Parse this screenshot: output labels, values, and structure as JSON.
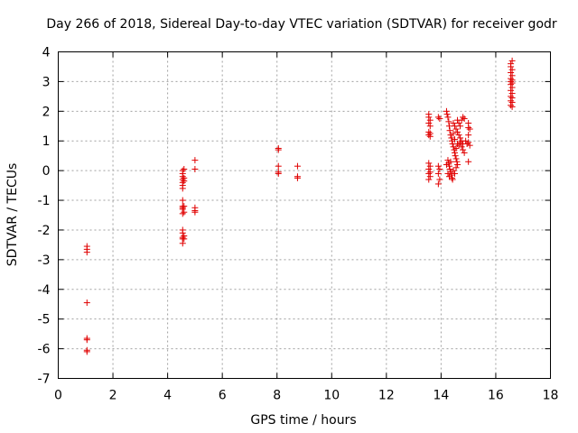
{
  "chart_data": {
    "type": "scatter",
    "title": "Day 266 of 2018, Sidereal Day-to-day VTEC variation (SDTVAR) for receiver godr",
    "xlabel": "GPS time / hours",
    "ylabel": "SDTVAR / TECUs",
    "xlim": [
      0,
      18
    ],
    "ylim": [
      -7,
      4
    ],
    "xticks": [
      "0",
      "2",
      "4",
      "6",
      "8",
      "10",
      "12",
      "14",
      "16",
      "18"
    ],
    "yticks": [
      "-7",
      "-6",
      "-5",
      "-4",
      "-3",
      "-2",
      "-1",
      "0",
      "1",
      "2",
      "3",
      "4"
    ],
    "grid": true,
    "marker": "+",
    "color": "#e00000",
    "series": [
      {
        "name": "SDTVAR",
        "points": [
          [
            1.05,
            -2.55
          ],
          [
            1.05,
            -2.65
          ],
          [
            1.05,
            -2.75
          ],
          [
            1.05,
            -4.45
          ],
          [
            1.05,
            -5.65
          ],
          [
            1.05,
            -5.7
          ],
          [
            1.05,
            -6.05
          ],
          [
            1.05,
            -6.1
          ],
          [
            4.55,
            0.0
          ],
          [
            4.55,
            -0.1
          ],
          [
            4.55,
            -0.2
          ],
          [
            4.55,
            -0.3
          ],
          [
            4.55,
            -0.4
          ],
          [
            4.55,
            -0.5
          ],
          [
            4.55,
            -0.6
          ],
          [
            4.6,
            0.05
          ],
          [
            4.6,
            -0.25
          ],
          [
            4.6,
            -0.35
          ],
          [
            4.55,
            -1.0
          ],
          [
            4.55,
            -1.2
          ],
          [
            4.55,
            -1.25
          ],
          [
            4.55,
            -1.3
          ],
          [
            4.55,
            -1.45
          ],
          [
            4.6,
            -1.2
          ],
          [
            4.6,
            -1.4
          ],
          [
            4.55,
            -2.0
          ],
          [
            4.55,
            -2.1
          ],
          [
            4.55,
            -2.25
          ],
          [
            4.55,
            -2.3
          ],
          [
            4.55,
            -2.45
          ],
          [
            4.6,
            -2.2
          ],
          [
            4.6,
            -2.3
          ],
          [
            5.0,
            0.35
          ],
          [
            5.0,
            0.05
          ],
          [
            5.0,
            -1.25
          ],
          [
            5.0,
            -1.35
          ],
          [
            5.0,
            -1.4
          ],
          [
            8.05,
            0.75
          ],
          [
            8.05,
            0.7
          ],
          [
            8.05,
            0.15
          ],
          [
            8.05,
            -0.05
          ],
          [
            8.05,
            -0.1
          ],
          [
            8.75,
            0.15
          ],
          [
            8.75,
            -0.2
          ],
          [
            8.75,
            -0.25
          ],
          [
            13.55,
            1.9
          ],
          [
            13.55,
            1.8
          ],
          [
            13.6,
            1.7
          ],
          [
            13.55,
            1.6
          ],
          [
            13.6,
            1.5
          ],
          [
            13.55,
            1.3
          ],
          [
            13.6,
            1.25
          ],
          [
            13.55,
            1.2
          ],
          [
            13.6,
            1.15
          ],
          [
            13.55,
            0.25
          ],
          [
            13.6,
            0.15
          ],
          [
            13.55,
            0.05
          ],
          [
            13.6,
            -0.05
          ],
          [
            13.55,
            -0.1
          ],
          [
            13.6,
            -0.2
          ],
          [
            13.55,
            -0.3
          ],
          [
            13.9,
            1.8
          ],
          [
            13.95,
            1.75
          ],
          [
            13.9,
            0.15
          ],
          [
            13.95,
            0.05
          ],
          [
            13.9,
            -0.1
          ],
          [
            13.95,
            -0.3
          ],
          [
            13.9,
            -0.45
          ],
          [
            14.2,
            2.0
          ],
          [
            14.22,
            1.9
          ],
          [
            14.25,
            1.8
          ],
          [
            14.28,
            1.65
          ],
          [
            14.3,
            1.5
          ],
          [
            14.32,
            1.35
          ],
          [
            14.35,
            1.2
          ],
          [
            14.38,
            1.1
          ],
          [
            14.4,
            1.0
          ],
          [
            14.42,
            0.9
          ],
          [
            14.45,
            0.8
          ],
          [
            14.48,
            0.7
          ],
          [
            14.5,
            0.6
          ],
          [
            14.52,
            0.5
          ],
          [
            14.55,
            0.4
          ],
          [
            14.58,
            0.3
          ],
          [
            14.6,
            0.2
          ],
          [
            14.25,
            0.35
          ],
          [
            14.28,
            0.25
          ],
          [
            14.3,
            0.15
          ],
          [
            14.32,
            0.05
          ],
          [
            14.35,
            -0.05
          ],
          [
            14.38,
            -0.15
          ],
          [
            14.4,
            -0.25
          ],
          [
            14.42,
            -0.3
          ],
          [
            14.2,
            0.2
          ],
          [
            14.25,
            -0.1
          ],
          [
            14.3,
            -0.2
          ],
          [
            14.35,
            0.3
          ],
          [
            14.45,
            0.0
          ],
          [
            14.5,
            -0.1
          ],
          [
            14.55,
            0.1
          ],
          [
            14.45,
            1.6
          ],
          [
            14.5,
            1.5
          ],
          [
            14.55,
            1.4
          ],
          [
            14.6,
            1.3
          ],
          [
            14.65,
            1.2
          ],
          [
            14.7,
            1.1
          ],
          [
            14.75,
            1.0
          ],
          [
            14.8,
            0.9
          ],
          [
            14.6,
            1.7
          ],
          [
            14.65,
            1.6
          ],
          [
            14.7,
            1.5
          ],
          [
            14.75,
            1.7
          ],
          [
            14.8,
            1.8
          ],
          [
            14.85,
            1.75
          ],
          [
            14.7,
            0.95
          ],
          [
            14.75,
            0.8
          ],
          [
            14.8,
            0.7
          ],
          [
            14.85,
            0.6
          ],
          [
            14.9,
            1.0
          ],
          [
            14.95,
            0.9
          ],
          [
            14.6,
            0.9
          ],
          [
            14.65,
            0.85
          ],
          [
            14.55,
            0.75
          ],
          [
            14.5,
            1.05
          ],
          [
            14.45,
            1.25
          ],
          [
            15.0,
            1.6
          ],
          [
            15.0,
            1.45
          ],
          [
            15.05,
            1.4
          ],
          [
            15.0,
            1.2
          ],
          [
            15.0,
            0.95
          ],
          [
            15.05,
            0.85
          ],
          [
            15.0,
            0.3
          ],
          [
            16.55,
            3.6
          ],
          [
            16.6,
            3.7
          ],
          [
            16.55,
            3.5
          ],
          [
            16.6,
            3.4
          ],
          [
            16.55,
            3.3
          ],
          [
            16.6,
            3.2
          ],
          [
            16.55,
            3.1
          ],
          [
            16.6,
            3.05
          ],
          [
            16.55,
            3.0
          ],
          [
            16.6,
            2.95
          ],
          [
            16.55,
            2.9
          ],
          [
            16.6,
            2.8
          ],
          [
            16.55,
            2.7
          ],
          [
            16.6,
            2.6
          ],
          [
            16.55,
            2.5
          ],
          [
            16.6,
            2.45
          ],
          [
            16.55,
            2.35
          ],
          [
            16.6,
            2.3
          ],
          [
            16.55,
            2.2
          ],
          [
            16.6,
            2.15
          ]
        ]
      }
    ]
  }
}
